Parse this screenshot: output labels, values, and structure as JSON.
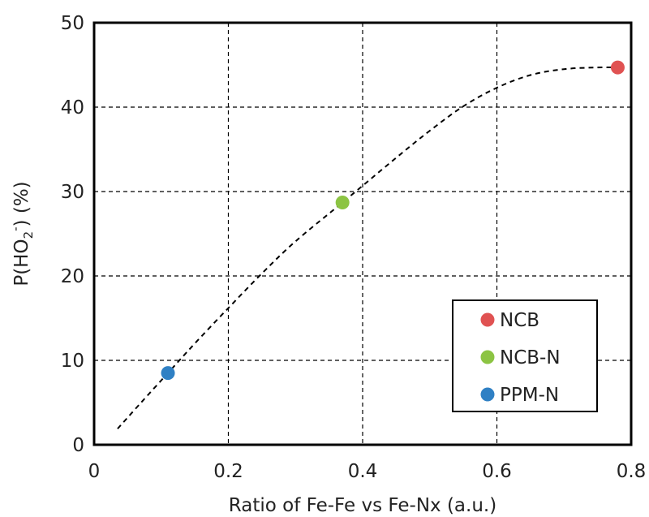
{
  "chart_data": {
    "type": "scatter",
    "xlabel": "Ratio of Fe-Fe vs Fe-Nx (a.u.)",
    "ylabel": {
      "prefix": "P(HO",
      "sub": "2",
      "sup": "-",
      "suffix": ") (%)"
    },
    "xlim": [
      0,
      0.8
    ],
    "ylim": [
      0,
      50
    ],
    "x_ticks": [
      0,
      0.2,
      0.4,
      0.6,
      0.8
    ],
    "x_tick_labels": [
      "0",
      "0.2",
      "0.4",
      "0.6",
      "0.8"
    ],
    "y_ticks": [
      0,
      10,
      20,
      30,
      40,
      50
    ],
    "y_tick_labels": [
      "0",
      "10",
      "20",
      "30",
      "40",
      "50"
    ],
    "grid": true,
    "grid_style": "dashed",
    "legend_position": "bottom-right",
    "series": [
      {
        "name": "NCB",
        "x": 0.78,
        "y": 44.7,
        "color": "#e05252"
      },
      {
        "name": "NCB-N",
        "x": 0.37,
        "y": 28.7,
        "color": "#8cc443"
      },
      {
        "name": "PPM-N",
        "x": 0.11,
        "y": 8.5,
        "color": "#2f80c4"
      }
    ],
    "trend_line": {
      "style": "dashed",
      "color": "#000000",
      "points": [
        [
          0.035,
          1.9
        ],
        [
          0.07,
          5.0
        ],
        [
          0.11,
          8.5
        ],
        [
          0.15,
          12.0
        ],
        [
          0.2,
          16.2
        ],
        [
          0.25,
          20.3
        ],
        [
          0.3,
          24.1
        ],
        [
          0.37,
          28.7
        ],
        [
          0.45,
          34.0
        ],
        [
          0.5,
          37.2
        ],
        [
          0.55,
          40.1
        ],
        [
          0.6,
          42.3
        ],
        [
          0.65,
          43.8
        ],
        [
          0.7,
          44.5
        ],
        [
          0.75,
          44.7
        ],
        [
          0.78,
          44.7
        ]
      ]
    }
  }
}
